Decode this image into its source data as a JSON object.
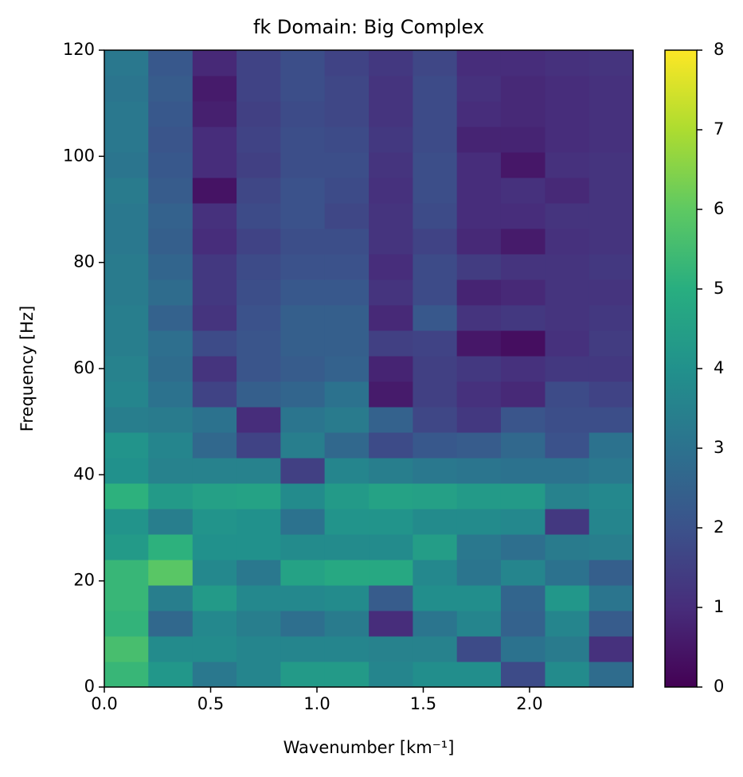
{
  "chart_data": {
    "type": "heatmap",
    "title": "fk Domain: Big Complex",
    "x_label": "Wavenumber [km⁻¹]",
    "y_label": "Frequency [Hz]",
    "colormap": "viridis",
    "xbins": [
      0,
      0.207,
      0.415,
      0.622,
      0.829,
      1.036,
      1.244,
      1.451,
      1.658,
      1.865,
      2.073,
      2.28,
      2.487
    ],
    "ybins": [
      0,
      4.8,
      9.6,
      14.4,
      19.2,
      24,
      28.8,
      33.6,
      38.4,
      43.2,
      48,
      52.8,
      57.6,
      62.4,
      67.2,
      72,
      76.8,
      81.6,
      86.4,
      91.2,
      96,
      100.8,
      105.6,
      110.4,
      115.2,
      120
    ],
    "values": [
      [
        5.3,
        4.2,
        3.2,
        3.6,
        4.3,
        4.3,
        3.6,
        3.9,
        3.9,
        1.8,
        3.8,
        2.8
      ],
      [
        5.6,
        3.8,
        3.8,
        3.6,
        3.6,
        3.6,
        3.5,
        3.5,
        1.8,
        3.0,
        3.3,
        1.1
      ],
      [
        5.2,
        2.7,
        3.7,
        3.4,
        2.9,
        3.3,
        1.0,
        3.1,
        3.6,
        2.5,
        3.6,
        2.3
      ],
      [
        5.3,
        3.4,
        4.3,
        3.7,
        3.7,
        3.8,
        2.3,
        3.9,
        3.9,
        2.6,
        4.2,
        3.1
      ],
      [
        5.3,
        5.9,
        3.7,
        3.2,
        4.6,
        4.8,
        4.8,
        3.7,
        3.1,
        3.6,
        3.0,
        2.4
      ],
      [
        4.3,
        5.1,
        4.0,
        4.0,
        3.8,
        3.8,
        3.8,
        4.4,
        3.2,
        2.9,
        3.3,
        3.4
      ],
      [
        4.1,
        3.4,
        4.1,
        4.0,
        3.0,
        4.1,
        4.1,
        3.8,
        3.8,
        3.7,
        1.3,
        3.6
      ],
      [
        5.1,
        4.3,
        4.5,
        4.6,
        3.8,
        4.3,
        4.6,
        4.5,
        4.3,
        4.3,
        3.5,
        3.7
      ],
      [
        4.0,
        3.5,
        3.5,
        3.5,
        1.5,
        3.6,
        3.4,
        3.2,
        3.1,
        3.0,
        3.0,
        3.2
      ],
      [
        4.1,
        3.6,
        2.7,
        1.6,
        3.4,
        2.7,
        1.8,
        2.2,
        2.3,
        2.7,
        2.0,
        3.0
      ],
      [
        3.4,
        3.3,
        3.0,
        1.0,
        3.1,
        3.3,
        2.5,
        1.7,
        1.3,
        2.1,
        1.9,
        1.9
      ],
      [
        3.6,
        3.0,
        1.6,
        2.4,
        2.6,
        3.0,
        0.6,
        1.5,
        1.1,
        0.9,
        1.8,
        1.6
      ],
      [
        3.5,
        2.8,
        1.2,
        2.1,
        2.3,
        2.5,
        0.8,
        1.5,
        1.3,
        1.1,
        1.3,
        1.3
      ],
      [
        3.4,
        2.9,
        1.8,
        2.1,
        2.4,
        2.4,
        1.5,
        1.6,
        0.5,
        0.3,
        1.1,
        1.4
      ],
      [
        3.4,
        2.5,
        1.2,
        2.0,
        2.4,
        2.4,
        0.9,
        2.2,
        1.2,
        1.3,
        1.2,
        1.3
      ],
      [
        3.3,
        2.8,
        1.3,
        1.9,
        2.2,
        2.2,
        1.2,
        1.8,
        0.8,
        0.9,
        1.2,
        1.2
      ],
      [
        3.3,
        2.6,
        1.3,
        1.8,
        2.0,
        2.0,
        1.0,
        1.8,
        1.4,
        1.2,
        1.2,
        1.3
      ],
      [
        3.2,
        2.4,
        1.0,
        1.6,
        1.9,
        1.9,
        1.2,
        1.6,
        0.9,
        0.6,
        1.1,
        1.2
      ],
      [
        3.2,
        2.5,
        1.1,
        1.8,
        2.0,
        1.7,
        1.2,
        1.8,
        1.0,
        1.0,
        1.2,
        1.2
      ],
      [
        3.3,
        2.3,
        0.4,
        1.7,
        2.0,
        1.8,
        1.1,
        1.9,
        1.0,
        1.1,
        0.9,
        1.2
      ],
      [
        3.1,
        2.2,
        1.0,
        1.5,
        1.9,
        1.9,
        1.2,
        1.9,
        1.0,
        0.5,
        1.1,
        1.2
      ],
      [
        3.2,
        2.1,
        1.0,
        1.6,
        1.9,
        1.8,
        1.3,
        1.8,
        0.8,
        0.8,
        1.0,
        1.1
      ],
      [
        3.2,
        2.2,
        0.7,
        1.5,
        1.8,
        1.7,
        1.2,
        1.8,
        1.0,
        0.9,
        1.0,
        1.1
      ],
      [
        3.1,
        2.3,
        0.6,
        1.6,
        1.9,
        1.7,
        1.2,
        1.8,
        1.1,
        0.9,
        1.0,
        1.1
      ],
      [
        3.2,
        2.2,
        0.9,
        1.6,
        1.9,
        1.6,
        1.3,
        1.7,
        1.0,
        1.0,
        1.1,
        1.2
      ]
    ],
    "xlim": [
      0,
      2.487
    ],
    "ylim": [
      0,
      120
    ],
    "xticks": [
      {
        "value": 0,
        "label": "0.0"
      },
      0.5,
      {
        "value": 1,
        "label": "1.0"
      },
      1.5,
      {
        "value": 2,
        "label": "2.0"
      }
    ],
    "yticks": [
      0,
      20,
      40,
      60,
      80,
      100,
      120
    ],
    "colorbar": {
      "lim": [
        0,
        8
      ],
      "ticks": [
        0,
        1,
        2,
        3,
        4,
        5,
        6,
        7,
        8
      ]
    }
  }
}
